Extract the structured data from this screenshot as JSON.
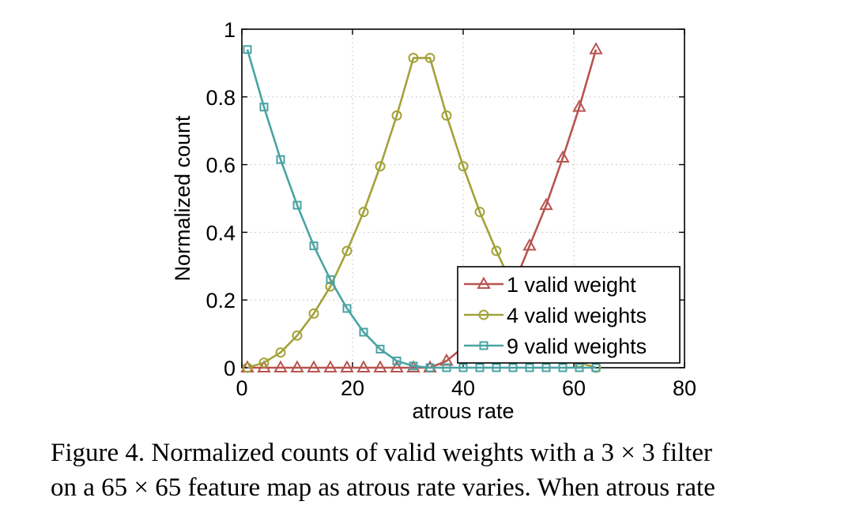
{
  "chart_data": {
    "type": "line",
    "title": "",
    "xlabel": "atrous rate",
    "ylabel": "Normalized count",
    "xlim": [
      0,
      80
    ],
    "ylim": [
      0,
      1
    ],
    "xticks": [
      "0",
      "20",
      "40",
      "60",
      "80"
    ],
    "yticks": [
      "0",
      "0.2",
      "0.4",
      "0.6",
      "0.8",
      "1"
    ],
    "xtick_values": [
      0,
      20,
      40,
      60,
      80
    ],
    "ytick_values": [
      0,
      0.2,
      0.4,
      0.6,
      0.8,
      1
    ],
    "grid": true,
    "legend_position": "bottom-right",
    "x": [
      1,
      4,
      7,
      10,
      13,
      16,
      19,
      22,
      25,
      28,
      31,
      34,
      37,
      40,
      43,
      46,
      49,
      52,
      55,
      58,
      61,
      64
    ],
    "series": [
      {
        "name": "1 valid weight",
        "color": "#b85450",
        "marker": "triangle",
        "values": [
          0,
          0,
          0,
          0,
          0,
          0,
          0,
          0,
          0,
          0,
          0,
          0,
          0.02,
          0.06,
          0.11,
          0.17,
          0.24,
          0.36,
          0.48,
          0.62,
          0.77,
          0.94
        ]
      },
      {
        "name": "4 valid weights",
        "color": "#a3a23a",
        "marker": "circle",
        "values": [
          0,
          0.015,
          0.045,
          0.095,
          0.16,
          0.24,
          0.345,
          0.46,
          0.595,
          0.745,
          0.915,
          0.915,
          0.745,
          0.595,
          0.46,
          0.345,
          0.24,
          0.16,
          0.095,
          0.045,
          0.015,
          0
        ]
      },
      {
        "name": "9 valid weights",
        "color": "#4aa3a3",
        "marker": "square",
        "values": [
          0.94,
          0.77,
          0.615,
          0.48,
          0.36,
          0.26,
          0.175,
          0.105,
          0.055,
          0.02,
          0.005,
          0,
          0,
          0,
          0,
          0,
          0,
          0,
          0,
          0,
          0,
          0
        ]
      }
    ]
  },
  "caption": {
    "line1": "Figure 4. Normalized counts of valid weights with a 3 × 3 filter",
    "line2": "on a 65 × 65 feature map as atrous rate varies. When atrous rate"
  }
}
